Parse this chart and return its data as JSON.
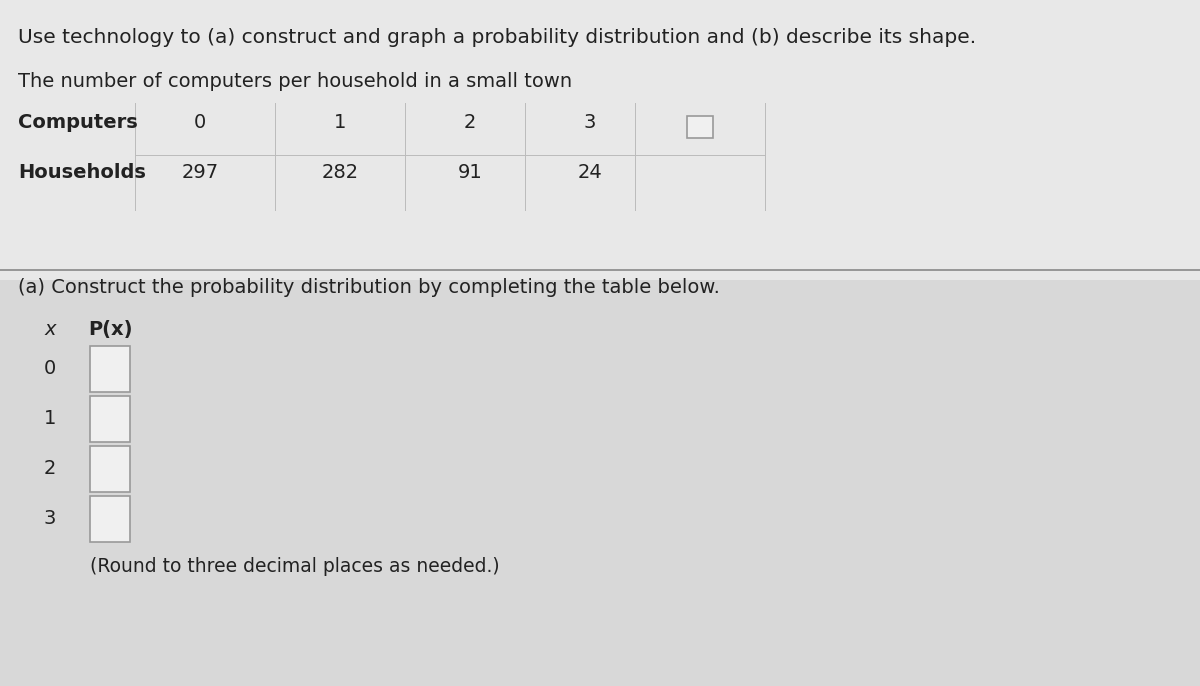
{
  "title_line1": "Use technology to (a) construct and graph a probability distribution and (b) describe its shape.",
  "title_line2": "The number of computers per household in a small town",
  "computers_label": "Computers",
  "households_label": "Households",
  "computers_values": [
    "0",
    "1",
    "2",
    "3",
    ""
  ],
  "households_values": [
    "297",
    "282",
    "91",
    "24",
    ""
  ],
  "section_a_label": "(a) Construct the probability distribution by completing the table below.",
  "col1_header": "x",
  "col2_header": "P(x)",
  "x_values": [
    "0",
    "1",
    "2",
    "3"
  ],
  "round_note": "(Round to three decimal places as needed.)",
  "bg_color": "#d4d4d4",
  "top_bg_color": "#e8e8e8",
  "bottom_bg_color": "#d8d8d8",
  "text_color": "#222222",
  "box_color": "#f0f0f0",
  "box_border": "#999999",
  "divider_color": "#888888",
  "table_line_color": "#bbbbbb",
  "font_size_title": 14.5,
  "font_size_body": 14.0,
  "font_size_note": 13.5
}
